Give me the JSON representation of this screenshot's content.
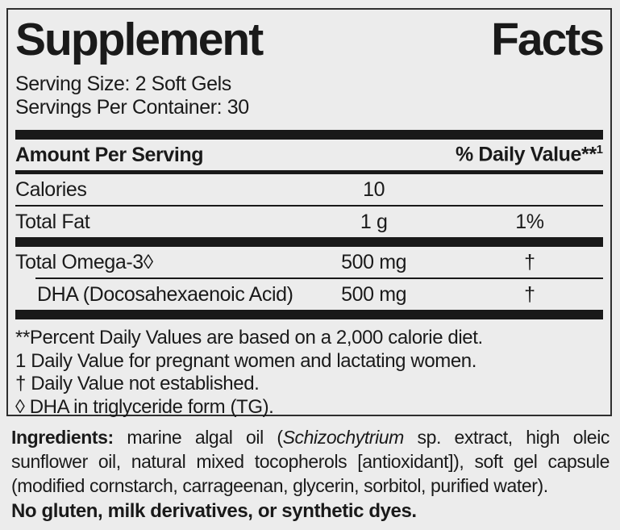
{
  "label": {
    "title": "Supplement Facts",
    "serving_size": "Serving Size: 2 Soft Gels",
    "servings_per_container": "Servings Per Container: 30",
    "header": {
      "amount_label": "Amount Per Serving",
      "dv_label": "% Daily Value**",
      "dv_superscript": "1"
    },
    "rows": [
      {
        "name": "Calories",
        "amount": "10",
        "dv": ""
      },
      {
        "name": "Total Fat",
        "amount": "1 g",
        "dv": "1%"
      },
      {
        "name": "Total Omega-3◊",
        "amount": "500 mg",
        "dv": "†"
      },
      {
        "name": "DHA (Docosahexaenoic Acid)",
        "amount": "500 mg",
        "dv": "†"
      }
    ],
    "footnotes": [
      "**Percent Daily Values are based on a 2,000 calorie diet.",
      "1 Daily Value for pregnant women and lactating women.",
      "† Daily Value not established.",
      "◊ DHA in triglyceride form (TG)."
    ]
  },
  "ingredients": {
    "label": "Ingredients:",
    "text_before_italic": " marine algal oil (",
    "italic": "Schizochytrium",
    "text_after_italic": " sp. extract, high oleic sunflower oil, natural mixed tocopherols [antioxidant]), soft gel capsule (modified cornstarch, carrageenan, glycerin, sorbitol, purified water)."
  },
  "claims": "No gluten, milk derivatives, or synthetic dyes.",
  "colors": {
    "background": "#ececec",
    "text": "#1a1a1a",
    "bar": "#191919",
    "border": "#2e2e2e"
  }
}
